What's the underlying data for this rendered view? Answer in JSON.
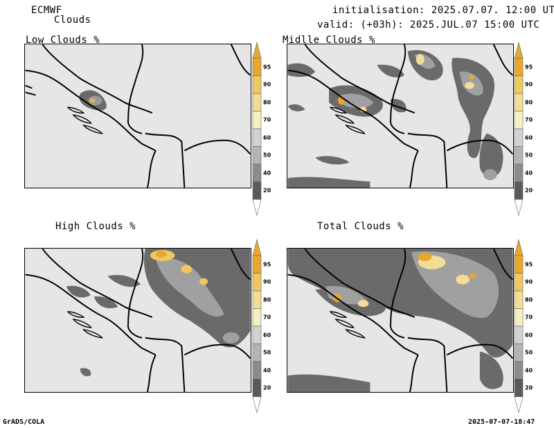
{
  "header": {
    "model": "ECMWF",
    "product": "Clouds",
    "initialisation": "initialisation: 2025.07.07. 12:00 UTC",
    "valid": "valid: (+03h): 2025.JUL.07 15:00 UTC"
  },
  "panels": [
    {
      "title": "Low Clouds %"
    },
    {
      "title": "Midlle Clouds %"
    },
    {
      "title": "High Clouds %"
    },
    {
      "title": "Total Clouds %"
    }
  ],
  "colorbar": {
    "labels": [
      "95",
      "90",
      "80",
      "70",
      "60",
      "50",
      "40",
      "20"
    ],
    "colors": [
      "#e8a82e",
      "#f0c860",
      "#f3dc96",
      "#f6f0c0",
      "#d2d2d2",
      "#b4b4b4",
      "#8c8c8c",
      "#5a5a5a"
    ]
  },
  "footer": {
    "left": "GrADS/COLA",
    "right": "2025-07-07-18:47"
  }
}
